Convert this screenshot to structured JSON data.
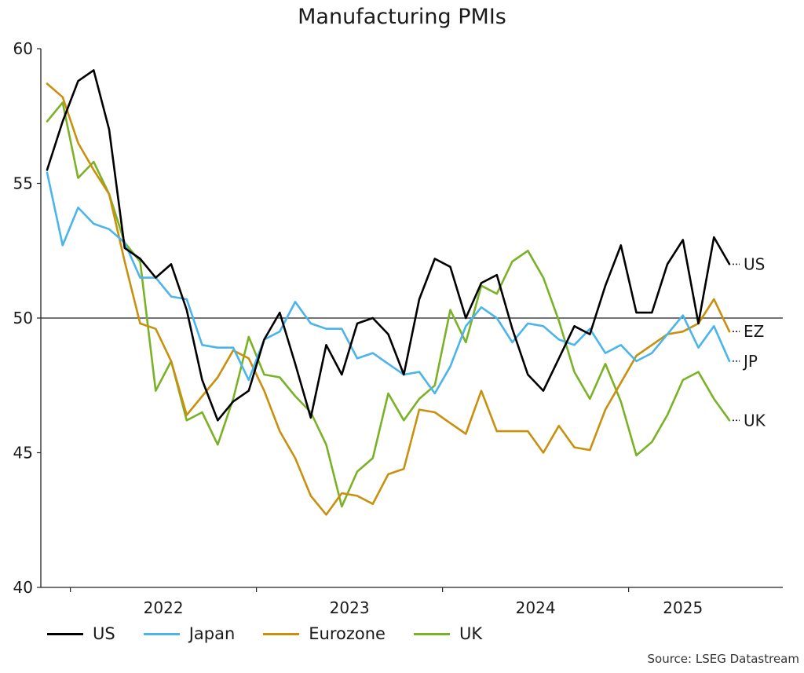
{
  "chart_data": {
    "type": "line",
    "title": "Manufacturing PMIs",
    "source": "Source: LSEG Datastream",
    "ylim": [
      40,
      60
    ],
    "y_ticks": [
      40,
      45,
      50,
      55,
      60
    ],
    "x_tick_labels": [
      "2022",
      "2023",
      "2024",
      "2025"
    ],
    "reference_line": 50,
    "x_start": "2021-11",
    "x_end": "2025-04",
    "legend_position": "bottom-left",
    "series": [
      {
        "name": "US",
        "end_label": "US",
        "color": "#000000",
        "values": [
          55.5,
          57.3,
          58.8,
          59.2,
          57.0,
          52.6,
          52.2,
          51.5,
          52.0,
          50.3,
          47.7,
          46.2,
          46.9,
          47.3,
          49.2,
          50.2,
          48.3,
          46.3,
          49.0,
          47.9,
          49.8,
          50.0,
          49.4,
          47.9,
          50.7,
          52.2,
          51.9,
          50.0,
          51.3,
          51.6,
          49.6,
          47.9,
          47.3,
          48.5,
          49.7,
          49.4,
          51.2,
          52.7,
          50.2,
          50.2,
          52.0,
          52.9,
          49.8,
          53.0,
          52.0
        ]
      },
      {
        "name": "Japan",
        "end_label": "JP",
        "color": "#49b5ea",
        "values": [
          55.4,
          52.7,
          54.1,
          53.5,
          53.3,
          52.8,
          51.5,
          51.5,
          50.8,
          50.7,
          49.0,
          48.9,
          48.9,
          47.7,
          49.2,
          49.5,
          50.6,
          49.8,
          49.6,
          49.6,
          48.5,
          48.7,
          48.3,
          47.9,
          48.0,
          47.2,
          48.2,
          49.7,
          50.4,
          50.0,
          49.1,
          49.8,
          49.7,
          49.2,
          49.0,
          49.6,
          48.7,
          49.0,
          48.4,
          48.7,
          49.4,
          50.1,
          48.9,
          49.7,
          48.4
        ]
      },
      {
        "name": "Eurozone",
        "end_label": "EZ",
        "color": "#c9900e",
        "values": [
          58.7,
          58.2,
          56.5,
          55.5,
          54.6,
          52.1,
          49.8,
          49.6,
          48.4,
          46.4,
          47.1,
          47.8,
          48.8,
          48.5,
          47.3,
          45.8,
          44.8,
          43.4,
          42.7,
          43.5,
          43.4,
          43.1,
          44.2,
          44.4,
          46.6,
          46.5,
          46.1,
          45.7,
          47.3,
          45.8,
          45.8,
          45.8,
          45.0,
          46.0,
          45.2,
          45.1,
          46.6,
          47.6,
          48.6,
          49.0,
          49.4,
          49.5,
          49.8,
          50.7,
          49.5
        ]
      },
      {
        "name": "UK",
        "end_label": "UK",
        "color": "#7ab226",
        "values": [
          57.3,
          58.0,
          55.2,
          55.8,
          54.6,
          52.8,
          52.1,
          47.3,
          48.4,
          46.2,
          46.5,
          45.3,
          47.0,
          49.3,
          47.9,
          47.8,
          47.1,
          46.5,
          45.3,
          43.0,
          44.3,
          44.8,
          47.2,
          46.2,
          47.0,
          47.5,
          50.3,
          49.1,
          51.2,
          50.9,
          52.1,
          52.5,
          51.5,
          49.9,
          48.0,
          47.0,
          48.3,
          46.9,
          44.9,
          45.4,
          46.4,
          47.7,
          48.0,
          47.0,
          46.2
        ]
      }
    ]
  }
}
